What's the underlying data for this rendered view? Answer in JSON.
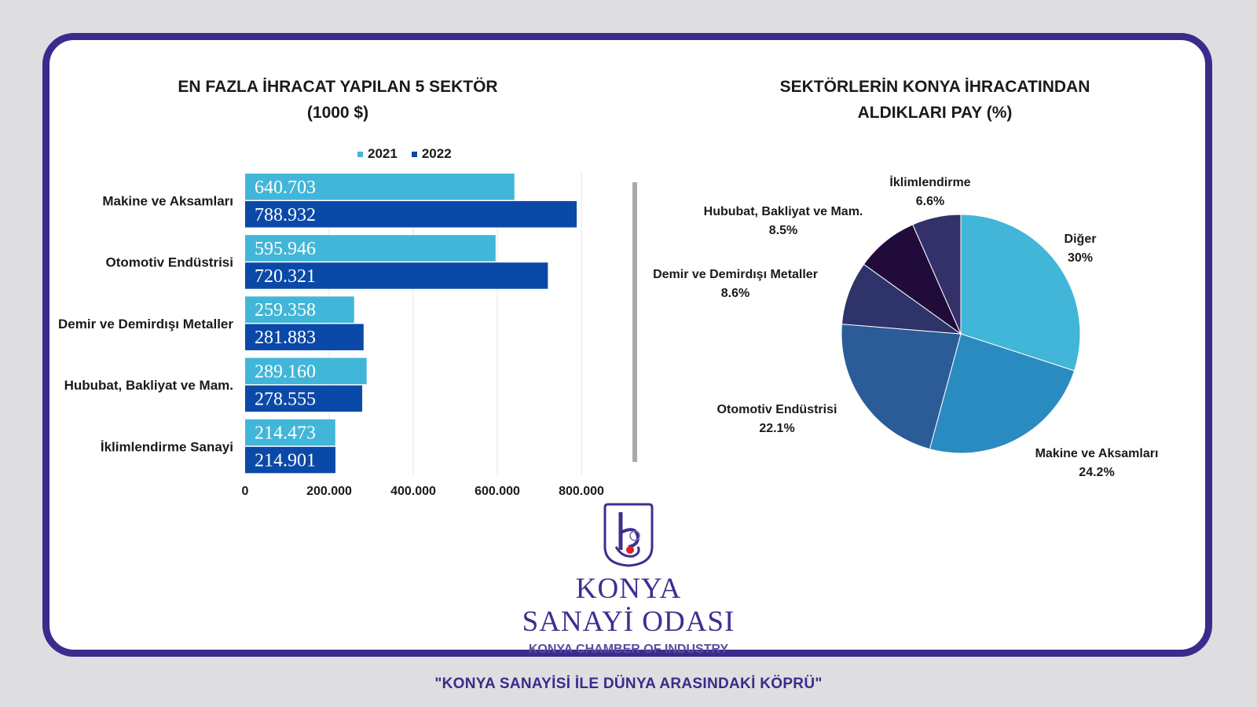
{
  "bar_chart": {
    "title_line1": "EN FAZLA İHRACAT YAPILAN 5 SEKTÖR",
    "title_line2": "(1000 $)"
  },
  "pie_chart": {
    "title_line1": "SEKTÖRLERİN KONYA İHRACATINDAN",
    "title_line2": "ALDIKLARI PAY (%)"
  },
  "chart_data": [
    {
      "type": "bar",
      "orientation": "horizontal",
      "title": "EN FAZLA İHRACAT YAPILAN 5 SEKTÖR (1000 $)",
      "categories": [
        "Makine ve Aksamları",
        "Otomotiv Endüstrisi",
        "Demir ve Demirdışı Metaller",
        "Hububat, Bakliyat ve Mam.",
        "İklimlendirme Sanayi"
      ],
      "series": [
        {
          "name": "2021",
          "color": "#41b6d8",
          "values": [
            640703,
            595946,
            259358,
            289160,
            214473
          ],
          "labels": [
            "640.703",
            "595.946",
            "259.358",
            "289.160",
            "214.473"
          ]
        },
        {
          "name": "2022",
          "color": "#0b49a8",
          "values": [
            788932,
            720321,
            281883,
            278555,
            214901
          ],
          "labels": [
            "788.932",
            "720.321",
            "281.883",
            "278.555",
            "214.901"
          ]
        }
      ],
      "xlim": [
        0,
        800000
      ],
      "xticks": [
        0,
        200000,
        400000,
        600000,
        800000
      ],
      "xtick_labels": [
        "0",
        "200.000",
        "400.000",
        "600.000",
        "800.000"
      ],
      "grid": true,
      "legend": "top"
    },
    {
      "type": "pie",
      "title": "SEKTÖRLERİN KONYA İHRACATINDAN ALDIKLARI PAY (%)",
      "slices": [
        {
          "label": "Diğer",
          "value": 30,
          "value_label": "30%",
          "color": "#41b6d8"
        },
        {
          "label": "Makine ve Aksamları",
          "value": 24.2,
          "value_label": "24.2%",
          "color": "#2a8bc0"
        },
        {
          "label": "Otomotiv Endüstrisi",
          "value": 22.1,
          "value_label": "22.1%",
          "color": "#2b5c98"
        },
        {
          "label": "Demir ve Demirdışı Metaller",
          "value": 8.6,
          "value_label": "8.6%",
          "color": "#2e3469"
        },
        {
          "label": "Hububat, Bakliyat ve Mam.",
          "value": 8.5,
          "value_label": "8.5%",
          "color": "#210b3a"
        },
        {
          "label": "İklimlendirme",
          "value": 6.6,
          "value_label": "6.6%",
          "color": "#33306a"
        }
      ]
    }
  ],
  "logo": {
    "name_line1": "KONYA",
    "name_line2": "SANAYİ ODASI",
    "english": "KONYA CHAMBER OF INDUSTRY",
    "icon": "kso-logo-icon"
  },
  "tagline": "\"KONYA SANAYİSİ İLE DÜNYA ARASINDAKİ KÖPRÜ\""
}
